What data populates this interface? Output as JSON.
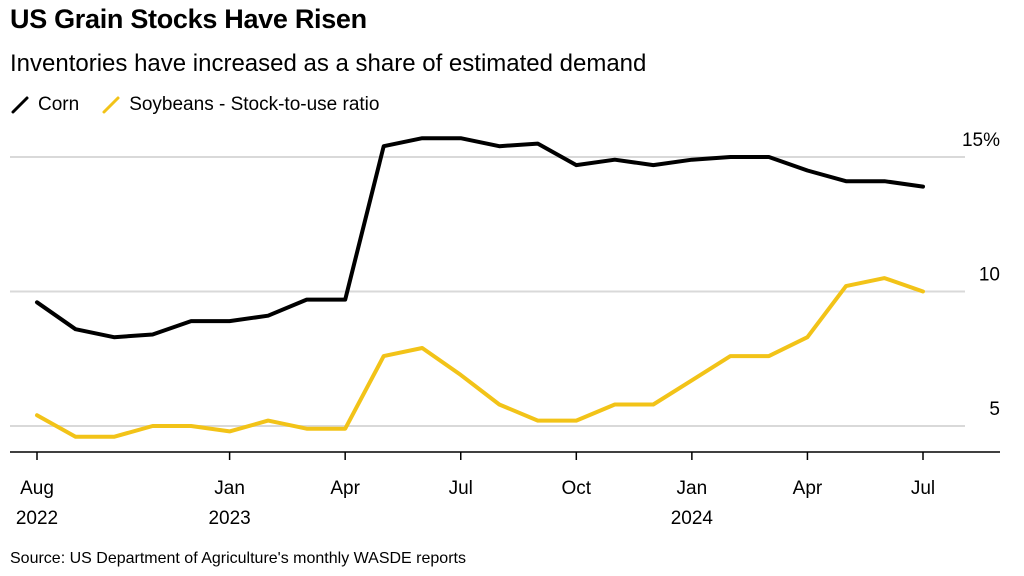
{
  "title": "US Grain Stocks Have Risen",
  "subtitle": "Inventories have increased as a share of estimated demand",
  "source": "Source: US Department of Agriculture's monthly WASDE reports",
  "colors": {
    "corn": "#000000",
    "soybeans": "#f2c318",
    "grid": "#d9d9d9"
  },
  "chart_data": {
    "type": "line",
    "title": "US Grain Stocks Have Risen",
    "xlabel": "",
    "ylabel": "",
    "ylim": [
      4,
      16
    ],
    "yticks": [
      {
        "value": 15,
        "label": "15%"
      },
      {
        "value": 10,
        "label": "10"
      },
      {
        "value": 5,
        "label": "5"
      }
    ],
    "x_month_index_range": [
      -0.5,
      24.5
    ],
    "xticks": [
      {
        "index": 0,
        "line1": "Aug",
        "line2": "2022"
      },
      {
        "index": 5,
        "line1": "Jan",
        "line2": "2023"
      },
      {
        "index": 8,
        "line1": "Apr",
        "line2": ""
      },
      {
        "index": 11,
        "line1": "Jul",
        "line2": ""
      },
      {
        "index": 14,
        "line1": "Oct",
        "line2": ""
      },
      {
        "index": 17,
        "line1": "Jan",
        "line2": "2024"
      },
      {
        "index": 20,
        "line1": "Apr",
        "line2": ""
      },
      {
        "index": 23,
        "line1": "Jul",
        "line2": ""
      }
    ],
    "x": [
      "2022-08",
      "2022-09",
      "2022-10",
      "2022-11",
      "2022-12",
      "2023-01",
      "2023-02",
      "2023-03",
      "2023-04",
      "2023-05",
      "2023-06",
      "2023-07",
      "2023-08",
      "2023-09",
      "2023-10",
      "2023-11",
      "2023-12",
      "2024-01",
      "2024-02",
      "2024-03",
      "2024-04",
      "2024-05",
      "2024-06",
      "2024-07",
      "2024-08"
    ],
    "series": [
      {
        "name": "Corn",
        "color": "#000000",
        "values": [
          9.6,
          8.6,
          8.3,
          8.4,
          8.9,
          8.9,
          9.1,
          9.7,
          9.7,
          15.4,
          15.7,
          15.7,
          15.4,
          15.5,
          14.7,
          14.9,
          14.7,
          14.9,
          15.0,
          15.0,
          14.5,
          14.1,
          14.1,
          13.9,
          null
        ]
      },
      {
        "name": "Soybeans - Stock-to-use ratio",
        "color": "#f2c318",
        "values": [
          5.4,
          4.6,
          4.6,
          5.0,
          5.0,
          4.8,
          5.2,
          4.9,
          4.9,
          7.6,
          7.9,
          6.9,
          5.8,
          5.2,
          5.2,
          5.8,
          5.8,
          6.7,
          7.6,
          7.6,
          8.3,
          10.2,
          10.5,
          10.0,
          null
        ]
      }
    ]
  }
}
